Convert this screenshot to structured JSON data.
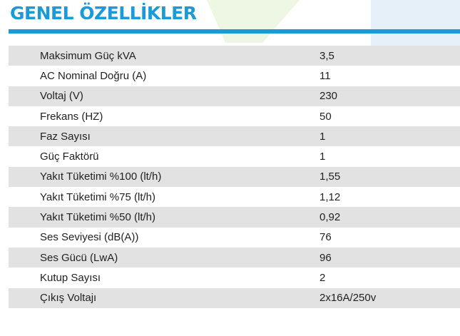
{
  "header": {
    "title": "GENEL ÖZELLİKLER"
  },
  "specs": [
    {
      "label": "Maksimum Güç kVA",
      "value": "3,5"
    },
    {
      "label": "AC Nominal Doğru (A)",
      "value": "11"
    },
    {
      "label": "Voltaj (V)",
      "value": "230"
    },
    {
      "label": "Frekans (HZ)",
      "value": "50"
    },
    {
      "label": "Faz Sayısı",
      "value": "1"
    },
    {
      "label": "Güç Faktörü",
      "value": "1"
    },
    {
      "label": "Yakıt Tüketimi %100 (lt/h)",
      "value": "1,55"
    },
    {
      "label": "Yakıt Tüketimi %75 (lt/h)",
      "value": "1,12"
    },
    {
      "label": "Yakıt Tüketimi %50 (lt/h)",
      "value": "0,92"
    },
    {
      "label": "Ses Seviyesi (dB(A))",
      "value": "76"
    },
    {
      "label": "Ses Gücü (LwA)",
      "value": "96"
    },
    {
      "label": "Kutup Sayısı",
      "value": "2"
    },
    {
      "label": "Çıkış Voltajı",
      "value": "2x16A/250v"
    }
  ],
  "colors": {
    "accent": "#1a9ad6",
    "row_shade": "#e2e2e2",
    "text": "#222222"
  }
}
